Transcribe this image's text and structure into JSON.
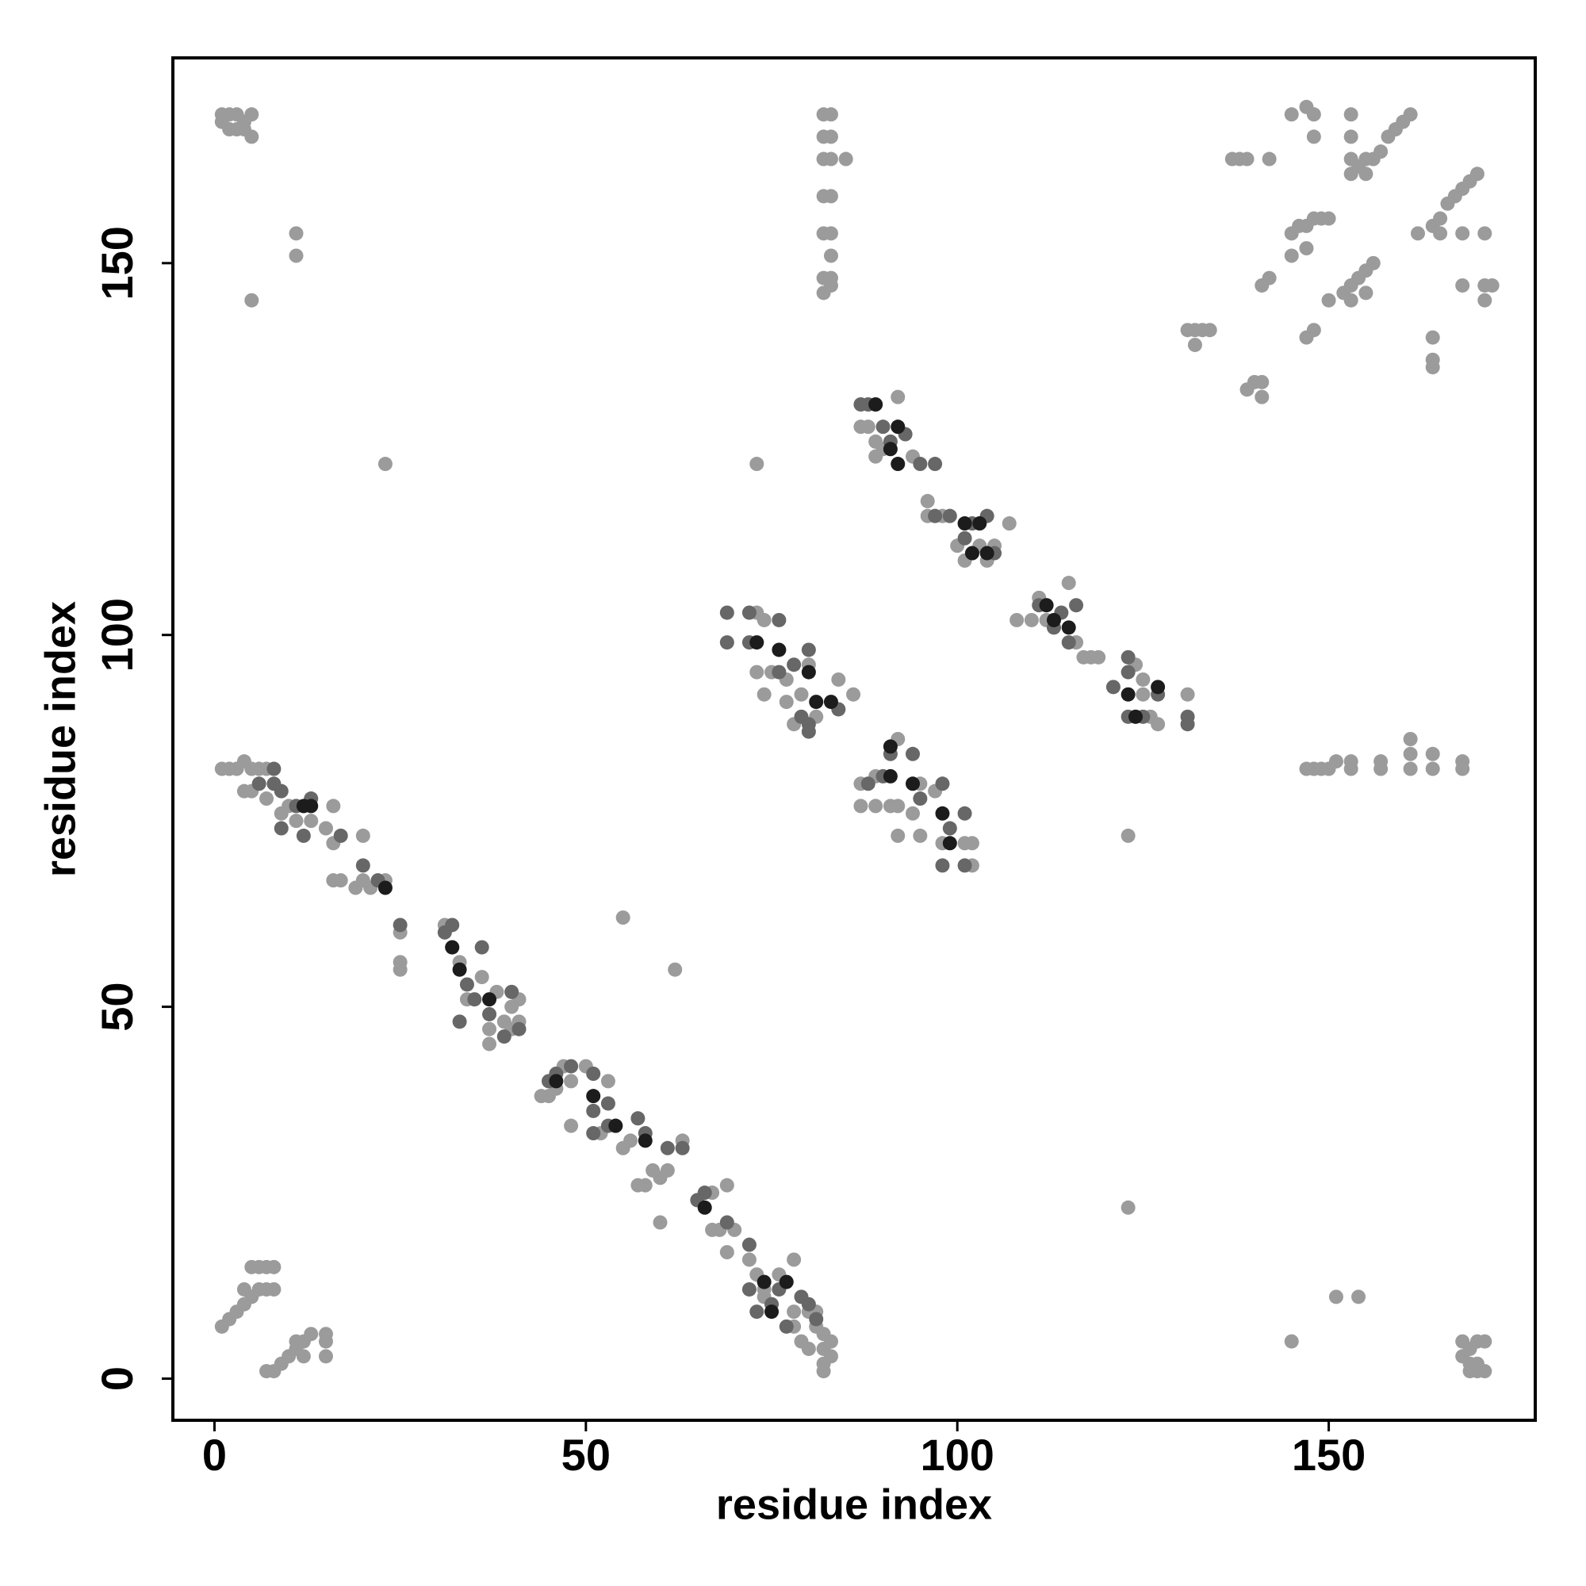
{
  "chart_data": {
    "type": "scatter",
    "xlabel": "residue index",
    "ylabel": "residue index",
    "xlim": [
      -5.6,
      177.8
    ],
    "ylim": [
      -5.6,
      177.6
    ],
    "xticks": [
      0,
      50,
      100,
      150
    ],
    "yticks": [
      0,
      50,
      100,
      150
    ],
    "grid": false,
    "series": [
      {
        "color": "#9b9b9b",
        "x": [
          1,
          2,
          3,
          4,
          5,
          1,
          2,
          3,
          4,
          5,
          11,
          11,
          5,
          82,
          83,
          82,
          83,
          82,
          83,
          85,
          82,
          83,
          82,
          83,
          83,
          82,
          83,
          82,
          83,
          148,
          147,
          145,
          148,
          153,
          153,
          137,
          138,
          139,
          142,
          153,
          154,
          155,
          156,
          157,
          158,
          159,
          160,
          161,
          153,
          155,
          164,
          165,
          166,
          167,
          168,
          169,
          170,
          162,
          165,
          168,
          171,
          145,
          146,
          147,
          148,
          149,
          150,
          145,
          147,
          141,
          142,
          150,
          152,
          153,
          154,
          155,
          156,
          153,
          155,
          168,
          171,
          172,
          171,
          164,
          164,
          164,
          131,
          132,
          133,
          134,
          132,
          147,
          148,
          139,
          140,
          141,
          141,
          23,
          73,
          55,
          62,
          123,
          123,
          147,
          148,
          149,
          150,
          151,
          153,
          153,
          157,
          157,
          161,
          161,
          161,
          164,
          164,
          168,
          168,
          151,
          154,
          145,
          168,
          169,
          170,
          171,
          168,
          169,
          170,
          171,
          170,
          169,
          1,
          2,
          3,
          4,
          5,
          6,
          4,
          5,
          6,
          7,
          8,
          8,
          7,
          7,
          8,
          9,
          10,
          11,
          12,
          13,
          11,
          12,
          15,
          15,
          15,
          1,
          2,
          3,
          4,
          5,
          6,
          7,
          4,
          5,
          7,
          9,
          10,
          11,
          13,
          15,
          16,
          16,
          16,
          17,
          19,
          20,
          20,
          21,
          23,
          25,
          25,
          25,
          31,
          32,
          33,
          34,
          36,
          37,
          37,
          38,
          39,
          40,
          40,
          41,
          41,
          44,
          45,
          46,
          47,
          48,
          48,
          50,
          52,
          53,
          54,
          55,
          56,
          57,
          58,
          59,
          60,
          60,
          61,
          63,
          67,
          67,
          68,
          69,
          70,
          72,
          73,
          74,
          74,
          76,
          78,
          78,
          78,
          79,
          80,
          80,
          81,
          82,
          82,
          82,
          82,
          83,
          83,
          81,
          69,
          73,
          74,
          73,
          74,
          75,
          77,
          77,
          78,
          79,
          80,
          81,
          84,
          86,
          87,
          89,
          87,
          89,
          91,
          92,
          92,
          92,
          94,
          95,
          95,
          97,
          98,
          101,
          102,
          102,
          87,
          88,
          89,
          89,
          90,
          92,
          94,
          96,
          96,
          98,
          100,
          101,
          102,
          103,
          105,
          104,
          107,
          108,
          110,
          111,
          112,
          112,
          115,
          116,
          117,
          118,
          119,
          124,
          125,
          126,
          127,
          131,
          125
        ],
        "values": [
          170,
          170,
          170,
          169,
          170,
          169,
          168,
          168,
          168,
          167,
          154,
          151,
          145,
          170,
          170,
          167,
          167,
          164,
          164,
          164,
          159,
          159,
          154,
          154,
          151,
          148,
          147,
          146,
          148,
          170,
          171,
          170,
          167,
          170,
          167,
          164,
          164,
          164,
          164,
          164,
          163,
          164,
          164,
          165,
          167,
          168,
          169,
          170,
          162,
          162,
          155,
          156,
          158,
          159,
          160,
          161,
          162,
          154,
          154,
          154,
          154,
          154,
          155,
          155,
          156,
          156,
          156,
          151,
          152,
          147,
          148,
          145,
          146,
          147,
          148,
          149,
          150,
          145,
          146,
          147,
          147,
          147,
          145,
          140,
          137,
          136,
          141,
          141,
          141,
          141,
          139,
          140,
          141,
          133,
          134,
          134,
          132,
          123,
          123,
          62,
          55,
          73,
          23,
          82,
          82,
          82,
          82,
          83,
          82,
          83,
          82,
          83,
          82,
          84,
          86,
          82,
          84,
          82,
          83,
          11,
          11,
          5,
          5,
          4,
          5,
          5,
          3,
          2,
          2,
          1,
          1,
          1,
          7,
          8,
          9,
          10,
          11,
          12,
          12,
          15,
          15,
          15,
          15,
          12,
          12,
          1,
          1,
          2,
          3,
          4,
          5,
          6,
          5,
          3,
          3,
          5,
          6,
          82,
          82,
          82,
          83,
          82,
          82,
          82,
          79,
          79,
          78,
          76,
          77,
          75,
          75,
          74,
          77,
          72,
          67,
          67,
          66,
          67,
          73,
          66,
          67,
          60,
          56,
          55,
          61,
          58,
          56,
          51,
          54,
          47,
          45,
          52,
          48,
          50,
          47,
          51,
          48,
          38,
          38,
          39,
          42,
          40,
          34,
          42,
          33,
          40,
          34,
          31,
          32,
          26,
          26,
          28,
          27,
          21,
          28,
          32,
          25,
          20,
          20,
          17,
          20,
          16,
          14,
          11,
          12,
          14,
          16,
          9,
          7,
          5,
          4,
          9,
          7,
          6,
          4,
          2,
          1,
          3,
          5,
          9,
          26,
          103,
          102,
          95,
          92,
          95,
          94,
          91,
          88,
          92,
          96,
          89,
          94,
          92,
          80,
          81,
          77,
          77,
          77,
          86,
          77,
          73,
          76,
          73,
          80,
          79,
          72,
          72,
          72,
          69,
          128,
          128,
          126,
          124,
          125,
          132,
          124,
          118,
          116,
          116,
          112,
          110,
          111,
          112,
          112,
          110,
          115,
          102,
          102,
          105,
          104,
          102,
          107,
          99,
          97,
          97,
          97,
          96,
          92,
          89,
          88,
          92,
          94
        ]
      },
      {
        "color": "#676767",
        "x": [
          6,
          8,
          9,
          9,
          11,
          12,
          13,
          17,
          20,
          22,
          25,
          31,
          32,
          34,
          33,
          35,
          36,
          37,
          39,
          40,
          41,
          45,
          46,
          48,
          51,
          51,
          51,
          53,
          53,
          57,
          58,
          61,
          63,
          65,
          66,
          69,
          72,
          72,
          73,
          75,
          76,
          77,
          79,
          80,
          81,
          8,
          69,
          69,
          72,
          72,
          76,
          76,
          78,
          79,
          80,
          80,
          80,
          84,
          88,
          90,
          91,
          94,
          95,
          98,
          99,
          101,
          98,
          101,
          87,
          88,
          90,
          91,
          93,
          95,
          97,
          97,
          99,
          101,
          102,
          104,
          105,
          111,
          113,
          114,
          115,
          116,
          121,
          123,
          123,
          125,
          127,
          131,
          131,
          123
        ],
        "values": [
          80,
          82,
          79,
          74,
          77,
          73,
          78,
          73,
          69,
          67,
          61,
          60,
          61,
          53,
          48,
          51,
          58,
          49,
          46,
          52,
          47,
          40,
          41,
          42,
          41,
          36,
          33,
          34,
          37,
          35,
          33,
          31,
          31,
          24,
          25,
          21,
          18,
          12,
          9,
          10,
          12,
          7,
          11,
          10,
          8,
          80,
          103,
          99,
          103,
          99,
          102,
          95,
          96,
          89,
          98,
          88,
          87,
          90,
          80,
          81,
          84,
          84,
          78,
          80,
          74,
          76,
          69,
          69,
          131,
          131,
          128,
          126,
          127,
          123,
          123,
          116,
          116,
          113,
          115,
          116,
          111,
          104,
          101,
          103,
          99,
          104,
          93,
          97,
          95,
          89,
          92,
          89,
          88,
          89
        ]
      },
      {
        "color": "#1c1c1c",
        "x": [
          12,
          13,
          23,
          32,
          33,
          37,
          46,
          51,
          54,
          58,
          66,
          74,
          77,
          75,
          73,
          76,
          80,
          81,
          83,
          91,
          91,
          94,
          98,
          99,
          89,
          91,
          92,
          92,
          101,
          103,
          104,
          102,
          112,
          115,
          113,
          123,
          124,
          127
        ],
        "values": [
          77,
          77,
          66,
          58,
          55,
          51,
          40,
          38,
          34,
          32,
          23,
          13,
          13,
          9,
          99,
          98,
          95,
          91,
          91,
          85,
          81,
          80,
          76,
          72,
          131,
          125,
          128,
          123,
          115,
          115,
          111,
          111,
          104,
          101,
          102,
          92,
          89,
          93
        ]
      }
    ]
  }
}
